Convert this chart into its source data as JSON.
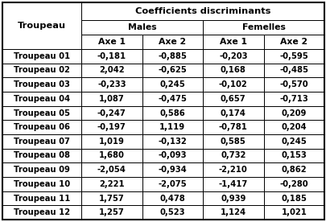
{
  "title": "Coefficients discriminants",
  "troupeau_label": "Troupeau",
  "males_label": "Males",
  "femelles_label": "Femelles",
  "col_header_axes": [
    "Axe 1",
    "Axe 2",
    "Axe 1",
    "Axe 2"
  ],
  "rows": [
    [
      "Troupeau 01",
      "-0,181",
      "-0,885",
      "-0,203",
      "-0,595"
    ],
    [
      "Troupeau 02",
      "2,042",
      "-0,625",
      "0,168",
      "-0,485"
    ],
    [
      "Troupeau 03",
      "-0,233",
      "0,245",
      "-0,102",
      "-0,570"
    ],
    [
      "Troupeau 04",
      "1,087",
      "-0,475",
      "0,657",
      "-0,713"
    ],
    [
      "Troupeau 05",
      "-0,247",
      "0,586",
      "0,174",
      "0,209"
    ],
    [
      "Troupeau 06",
      "-0,197",
      "1,119",
      "-0,781",
      "0,204"
    ],
    [
      "Troupeau 07",
      "1,019",
      "-0,132",
      "0,585",
      "0,245"
    ],
    [
      "Troupeau 08",
      "1,680",
      "-0,093",
      "0,732",
      "0,153"
    ],
    [
      "Troupeau 09",
      "-2,054",
      "-0,934",
      "-2,210",
      "0,862"
    ],
    [
      "Troupeau 10",
      "2,221",
      "-2,075",
      "-1,417",
      "-0,280"
    ],
    [
      "Troupeau 11",
      "1,757",
      "0,478",
      "0,939",
      "0,185"
    ],
    [
      "Troupeau 12",
      "1,257",
      "0,523",
      "1,124",
      "1,021"
    ]
  ],
  "bg_white": "#ffffff",
  "text_color": "#000000",
  "border_color": "#000000",
  "data_font_size": 7.2,
  "header_font_size": 7.8,
  "title_font_size": 8.2
}
